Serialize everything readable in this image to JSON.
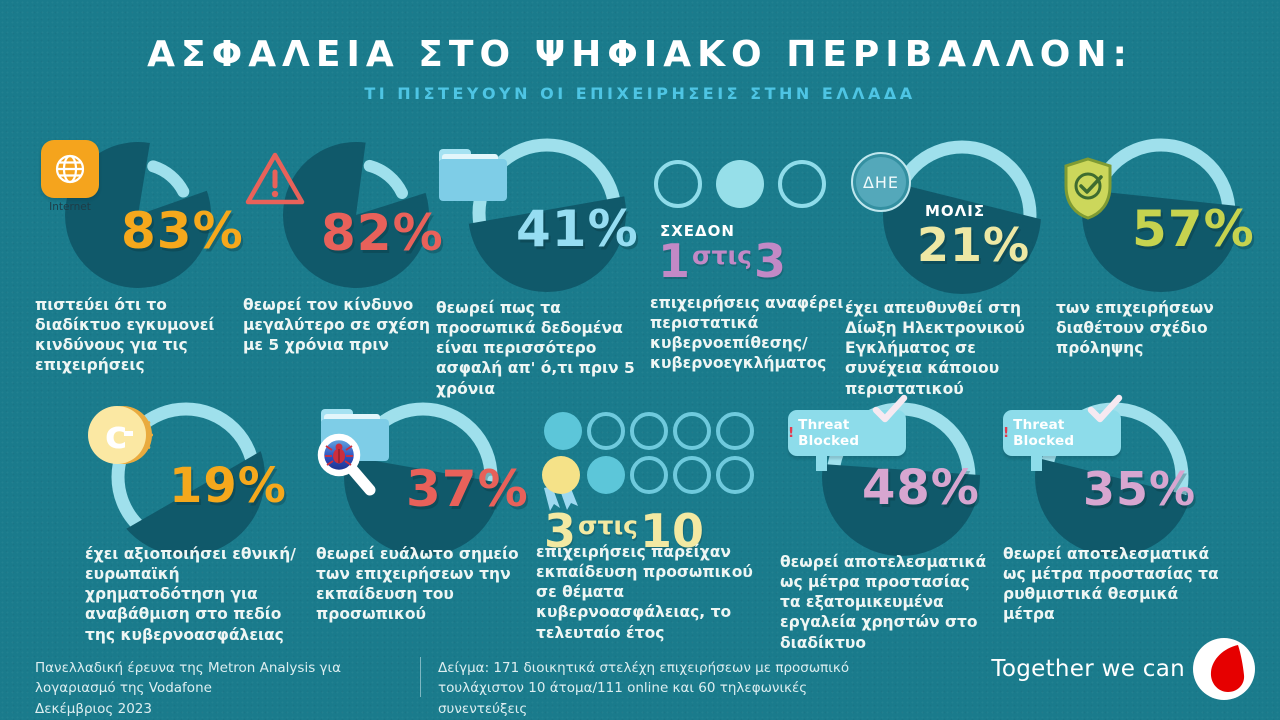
{
  "header": {
    "title": "ΑΣΦΑΛΕΙΑ ΣΤΟ ΨΗΦΙΑΚΟ ΠΕΡΙΒΑΛΛΟΝ:",
    "subtitle": "ΤΙ ΠΙΣΤΕΥΟΥΝ ΟΙ ΕΠΙΧΕΙΡΗΣΕΙΣ ΣΤΗΝ ΕΛΛΑΔΑ"
  },
  "colors": {
    "background": "#1a7b8c",
    "dark": "#10596a",
    "ring": "#9fe0ec",
    "orange": "#f5a81c",
    "coral": "#e8615a",
    "lightblue": "#96ddf2",
    "orchid": "#c289c6",
    "paleyellow": "#ede8a4",
    "lime": "#c6d34f",
    "pink": "#d7a6d0",
    "banner_bg": "#8ddcea",
    "banner_exclaim": "#e23b4e",
    "vodafone_red": "#e60000",
    "subtitle_blue": "#4ec5e4"
  },
  "stats": [
    {
      "name": "internet-risk",
      "icon": "internet-globe",
      "icon_label": "Internet",
      "value_display": "83%",
      "accent": "#f5a81c",
      "description": "πιστεύει ότι το διαδίκτυο εγκυμονεί κινδύνους για τις επιχειρήσεις",
      "chart": {
        "kind": "pie",
        "pct": 83,
        "gap_center": 40
      }
    },
    {
      "name": "risk-greater-than-5-years",
      "icon": "warning-triangle",
      "value_display": "82%",
      "accent": "#e8615a",
      "description": "θεωρεί τον κίνδυνο μεγαλύτερο σε σχέση με 5 χρόνια πριν",
      "chart": {
        "kind": "pie",
        "pct": 82,
        "gap_center": 40
      }
    },
    {
      "name": "personal-data-safer",
      "icon": "folder",
      "value_display": "41%",
      "accent": "#96ddf2",
      "description": "θεωρεί πως τα προσωπικά δεδομένα είναι περισσότερο ασφαλή απ' ό,τι πριν 5 χρόνια",
      "chart": {
        "kind": "ring",
        "pct": 41,
        "cover": 0.52,
        "tilt": -10
      }
    },
    {
      "name": "one-in-three-cyberattack",
      "icon": "three-circles",
      "kicker": "ΣΧΕΔΟΝ",
      "accent": "#c289c6",
      "ratio": {
        "n1": "1",
        "word": "στις",
        "n2": "3"
      },
      "description": "επιχειρήσεις αναφέρει περιστατικά κυβερνοεπίθεσης/ κυβερνοεγκλήματος",
      "chart": {
        "kind": "none",
        "pct": 33
      }
    },
    {
      "name": "reported-to-cybercrime-unit",
      "icon": "dhe-badge",
      "icon_label": "ΔΗΕ",
      "kicker": "ΜΟΛΙΣ",
      "value_display": "21%",
      "accent": "#ede8a4",
      "description": "έχει απευθυνθεί στη Δίωξη Ηλεκτρονικού Εγκλήματος σε συνέχεια κάποιου περιστατικού",
      "chart": {
        "kind": "ring",
        "pct": 21,
        "cover": 0.6,
        "tilt": 14
      }
    },
    {
      "name": "prevention-plan",
      "icon": "shield-check",
      "value_display": "57%",
      "accent": "#c6d34f",
      "description": "των επιχειρήσεων διαθέτουν σχέδιο πρόληψης",
      "chart": {
        "kind": "ring",
        "pct": 57,
        "cover": 0.6,
        "tilt": 6
      }
    },
    {
      "name": "eu-national-funding",
      "icon": "coin",
      "value_display": "19%",
      "accent": "#f5a81c",
      "description": "έχει αξιοποιήσει εθνική/ ευρωπαϊκή χρηματοδότηση για αναβάθμιση στο πεδίο της κυβερνοασφάλειας",
      "chart": {
        "kind": "ring",
        "pct": 19,
        "cover": 0.4,
        "tilt": -30
      }
    },
    {
      "name": "staff-training-weak-point",
      "icon": "folder-magnifier",
      "value_display": "37%",
      "accent": "#e8615a",
      "description": "θεωρεί ευάλωτο σημείο των επιχειρήσεων την εκπαίδευση του προσωπικού",
      "chart": {
        "kind": "ring",
        "pct": 37,
        "cover": 0.55,
        "tilt": 10
      }
    },
    {
      "name": "three-in-ten-training",
      "icon": "ten-circles",
      "accent": "#f3e9a2",
      "ratio": {
        "n1": "3",
        "word": "στις",
        "n2": "10"
      },
      "description": "επιχειρήσεις παρείχαν εκπαίδευση προσωπικού σε θέματα κυβερνοασφάλειας, το τελευταίο έτος",
      "chart": {
        "kind": "none",
        "pct": 30
      }
    },
    {
      "name": "personal-tools-effective",
      "icon": "threat-blocked-banner",
      "banner": {
        "exclaim": "!",
        "text": "Threat Blocked"
      },
      "value_display": "48%",
      "accent": "#d7a6d0",
      "description": "θεωρεί αποτελεσματικά ως μέτρα προστασίας τα εξατομικευμένα εργαλεία χρηστών στο διαδίκτυο",
      "chart": {
        "kind": "ring",
        "pct": 48,
        "cover": 0.55,
        "tilt": 4
      }
    },
    {
      "name": "regulatory-measures-effective",
      "icon": "threat-blocked-banner",
      "banner": {
        "exclaim": "!",
        "text": "Threat Blocked"
      },
      "value_display": "35%",
      "accent": "#d7a6d0",
      "description": "θεωρεί αποτελεσματικά ως μέτρα προστασίας τα ρυθμιστικά θεσμικά μέτρα",
      "chart": {
        "kind": "ring",
        "pct": 35,
        "cover": 0.5,
        "tilt": 14
      }
    }
  ],
  "chart_data": [
    {
      "type": "pie",
      "label": "83%",
      "value": 83,
      "unit": "%",
      "note": "πιστεύει ότι το διαδίκτυο εγκυμονεί κινδύνους για τις επιχειρήσεις"
    },
    {
      "type": "pie",
      "label": "82%",
      "value": 82,
      "unit": "%",
      "note": "θεωρεί τον κίνδυνο μεγαλύτερο σε σχέση με 5 χρόνια πριν"
    },
    {
      "type": "pie",
      "label": "41%",
      "value": 41,
      "unit": "%",
      "note": "θεωρεί πως τα προσωπικά δεδομένα είναι περισσότερο ασφαλή απ' ό,τι πριν 5 χρόνια"
    },
    {
      "type": "pie",
      "label": "ΣΧΕΔΟΝ 1 στις 3",
      "value": 33,
      "unit": "%",
      "note": "επιχειρήσεις αναφέρει περιστατικά κυβερνοεπίθεσης/κυβερνοεγκλήματος"
    },
    {
      "type": "pie",
      "label": "ΜΟΛΙΣ 21%",
      "value": 21,
      "unit": "%",
      "note": "έχει απευθυνθεί στη Δίωξη Ηλεκτρονικού Εγκλήματος σε συνέχεια κάποιου περιστατικού"
    },
    {
      "type": "pie",
      "label": "57%",
      "value": 57,
      "unit": "%",
      "note": "των επιχειρήσεων διαθέτουν σχέδιο πρόληψης"
    },
    {
      "type": "pie",
      "label": "19%",
      "value": 19,
      "unit": "%",
      "note": "έχει αξιοποιήσει εθνική/ευρωπαϊκή χρηματοδότηση για αναβάθμιση στο πεδίο της κυβερνοασφάλειας"
    },
    {
      "type": "pie",
      "label": "37%",
      "value": 37,
      "unit": "%",
      "note": "θεωρεί ευάλωτο σημείο των επιχειρήσεων την εκπαίδευση του προσωπικού"
    },
    {
      "type": "pie",
      "label": "3 στις 10",
      "value": 30,
      "unit": "%",
      "note": "επιχειρήσεις παρείχαν εκπαίδευση προσωπικού σε θέματα κυβερνοασφάλειας, το τελευταίο έτος"
    },
    {
      "type": "pie",
      "label": "48%",
      "value": 48,
      "unit": "%",
      "note": "θεωρεί αποτελεσματικά ως μέτρα προστασίας τα εξατομικευμένα εργαλεία χρηστών στο διαδίκτυο"
    },
    {
      "type": "pie",
      "label": "35%",
      "value": 35,
      "unit": "%",
      "note": "θεωρεί αποτελεσματικά ως μέτρα προστασίας τα ρυθμιστικά θεσμικά μέτρα"
    }
  ],
  "footer": {
    "source_line1": "Πανελλαδική έρευνα της Metron Analysis για λογαριασμό της Vodafone",
    "source_line2": "Δεκέμβριος 2023",
    "sample_line1": "Δείγμα: 171 διοικητικά στελέχη επιχειρήσεων με προσωπικό",
    "sample_line2": "τουλάχιστον 10 άτομα/111 online και 60 τηλεφωνικές συνεντεύξεις",
    "tagline": "Together we can"
  }
}
